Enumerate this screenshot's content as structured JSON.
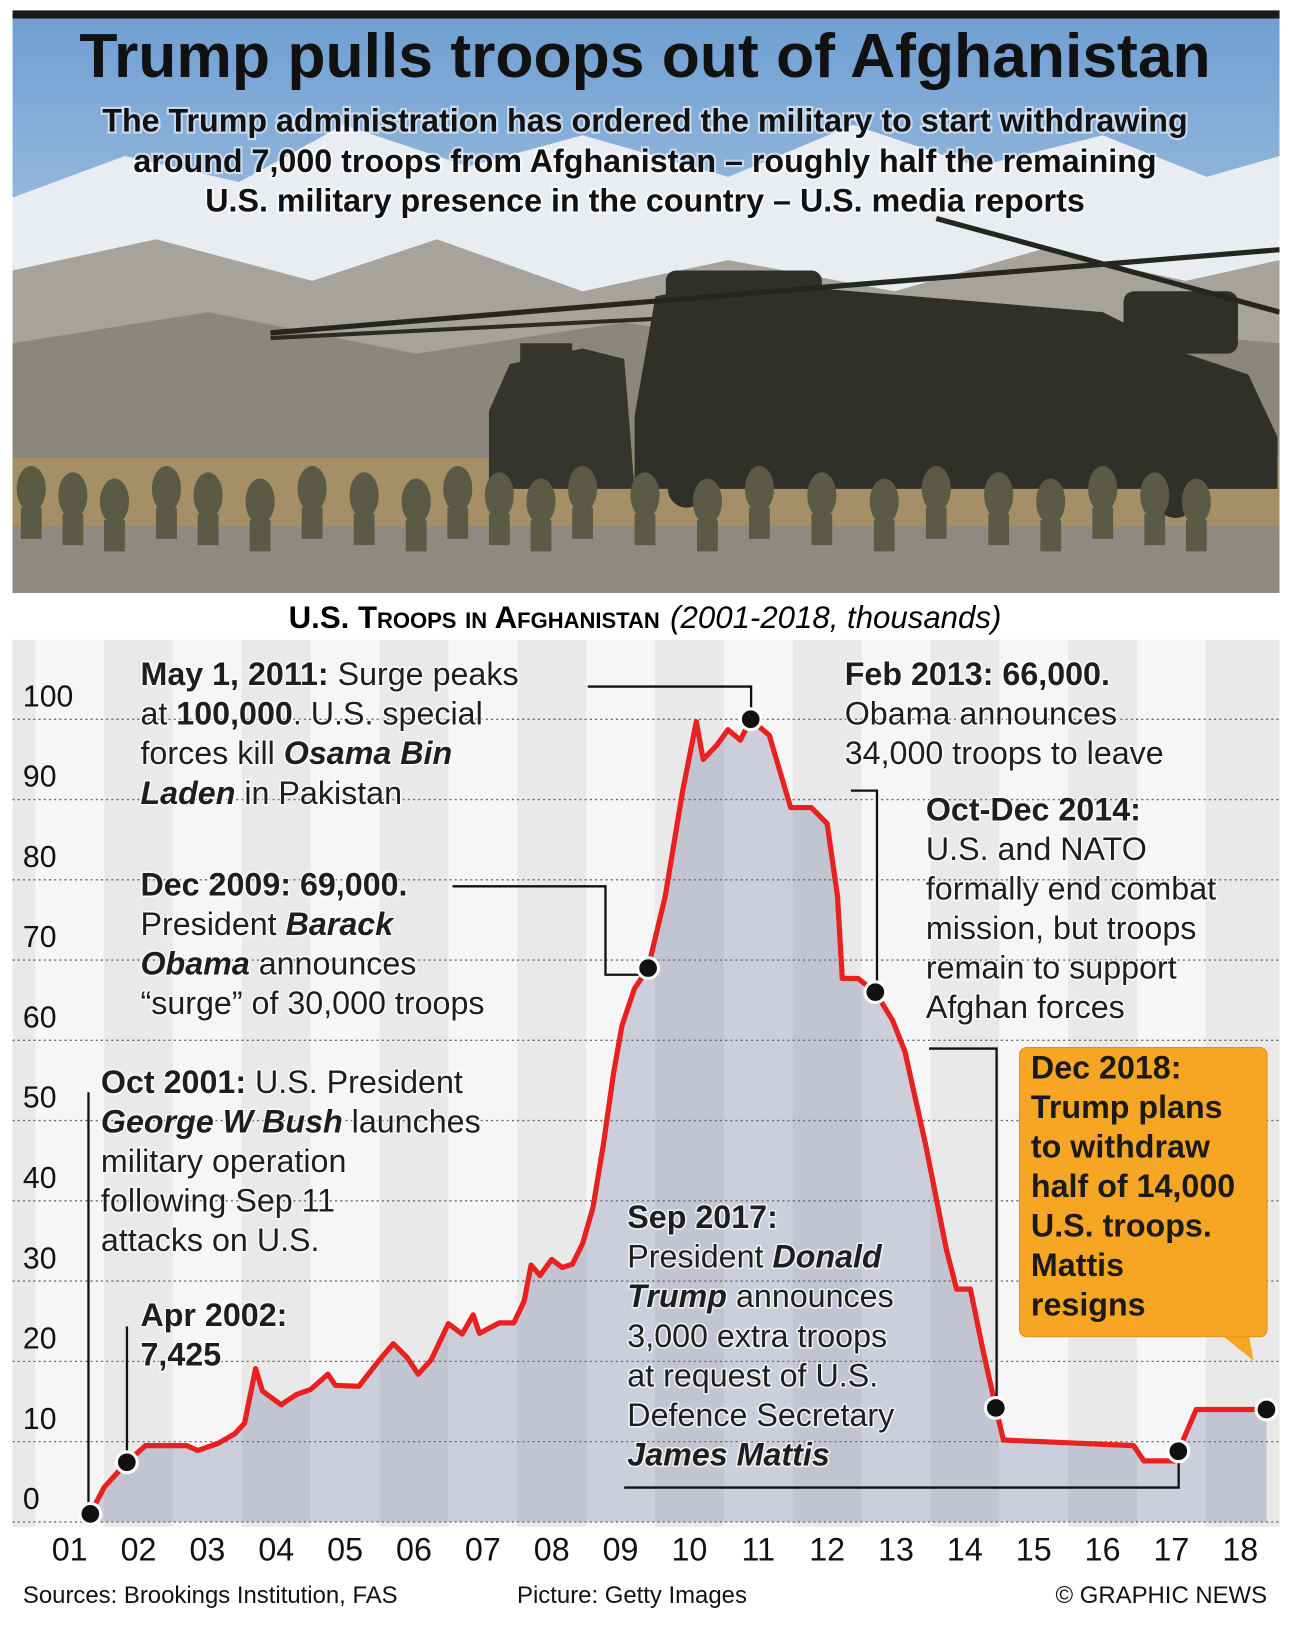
{
  "chart_data": {
    "type": "line",
    "title": "Trump pulls troops out of Afghanistan",
    "subtitle": [
      "The Trump administration has ordered the military to start withdrawing",
      "around 7,000 troops from Afghanistan – roughly half the remaining",
      "U.S. military presence in the country – U.S. media reports"
    ],
    "chart_title": "U.S. Troops in Afghanistan",
    "chart_subtitle": "(2001-2018, thousands)",
    "x": [
      2001.8,
      2002.0,
      2002.33,
      2002.6,
      2003.2,
      2003.36,
      2003.66,
      2003.9,
      2004.04,
      2004.2,
      2004.3,
      2004.57,
      2004.8,
      2005.0,
      2005.25,
      2005.36,
      2005.7,
      2006.0,
      2006.2,
      2006.4,
      2006.56,
      2006.75,
      2007.0,
      2007.2,
      2007.36,
      2007.45,
      2007.74,
      2007.95,
      2008.1,
      2008.2,
      2008.33,
      2008.5,
      2008.65,
      2008.8,
      2008.95,
      2009.1,
      2009.25,
      2009.4,
      2009.52,
      2009.7,
      2009.9,
      2010.15,
      2010.4,
      2010.6,
      2010.7,
      2010.9,
      2011.06,
      2011.24,
      2011.39,
      2011.66,
      2011.97,
      2012.27,
      2012.5,
      2012.65,
      2012.72,
      2012.95,
      2013.2,
      2013.45,
      2013.63,
      2013.93,
      2014.23,
      2014.38,
      2014.58,
      2014.76,
      2014.95,
      2015.06,
      2016.95,
      2017.1,
      2017.55,
      2017.6,
      2017.86,
      2018.88
    ],
    "values": [
      1,
      4.3,
      7.425,
      9.5,
      9.5,
      8.9,
      9.8,
      11,
      12.3,
      19.1,
      16.3,
      14.6,
      15.9,
      16.5,
      18.4,
      17,
      16.9,
      20.2,
      22.2,
      20.5,
      18.4,
      20.2,
      24.7,
      23.4,
      25.8,
      23.5,
      24.8,
      24.8,
      27.5,
      32,
      30.7,
      32.7,
      31.7,
      32.1,
      34.7,
      39.2,
      47,
      56,
      61.8,
      66.4,
      69,
      78,
      91,
      99.7,
      95,
      96.8,
      98.7,
      97.4,
      100,
      98,
      89,
      89,
      87,
      78,
      67.7,
      67.7,
      66,
      62.5,
      58.6,
      47,
      34,
      29,
      29,
      21.5,
      14.2,
      10.2,
      9.5,
      7.6,
      7.6,
      8.8,
      14,
      14
    ],
    "color": "#e8201e",
    "markers": [
      0,
      2,
      40,
      48,
      56,
      64,
      69,
      71
    ],
    "xlim": [
      2000.67,
      2019.07
    ],
    "xticks": [
      {
        "value": 2001.5,
        "label": "01"
      },
      {
        "value": 2002.5,
        "label": "02"
      },
      {
        "value": 2003.5,
        "label": "03"
      },
      {
        "value": 2004.5,
        "label": "04"
      },
      {
        "value": 2005.5,
        "label": "05"
      },
      {
        "value": 2006.5,
        "label": "06"
      },
      {
        "value": 2007.5,
        "label": "07"
      },
      {
        "value": 2008.5,
        "label": "08"
      },
      {
        "value": 2009.5,
        "label": "09"
      },
      {
        "value": 2010.5,
        "label": "10"
      },
      {
        "value": 2011.5,
        "label": "11"
      },
      {
        "value": 2012.5,
        "label": "12"
      },
      {
        "value": 2013.5,
        "label": "13"
      },
      {
        "value": 2014.5,
        "label": "14"
      },
      {
        "value": 2015.5,
        "label": "15"
      },
      {
        "value": 2016.5,
        "label": "16"
      },
      {
        "value": 2017.5,
        "label": "17"
      },
      {
        "value": 2018.5,
        "label": "18"
      }
    ],
    "ylim": [
      0,
      109
    ],
    "yticks": [
      0,
      10,
      20,
      30,
      40,
      50,
      60,
      70,
      80,
      90,
      100
    ],
    "grid": true,
    "annotations": [
      {
        "lines": [
          [
            {
              "text": "May 1, 2011:",
              "bold": true
            },
            {
              "text": " Surge peaks"
            }
          ],
          [
            {
              "text": "at "
            },
            {
              "text": "100,000",
              "bold": true
            },
            {
              "text": ". U.S. special"
            }
          ],
          [
            {
              "text": "forces kill "
            },
            {
              "text": "Osama Bin",
              "bold": true,
              "italic": true
            }
          ],
          [
            {
              "text": "Laden",
              "bold": true,
              "italic": true
            },
            {
              "text": " in Pakistan"
            }
          ]
        ]
      },
      {
        "lines": [
          [
            {
              "text": "Dec 2009: 69,000.",
              "bold": true
            }
          ],
          [
            {
              "text": "President "
            },
            {
              "text": "Barack",
              "bold": true,
              "italic": true
            }
          ],
          [
            {
              "text": "Obama",
              "bold": true,
              "italic": true
            },
            {
              "text": " announces"
            }
          ],
          [
            {
              "text": "“surge” of 30,000 troops"
            }
          ]
        ]
      },
      {
        "lines": [
          [
            {
              "text": "Oct 2001:",
              "bold": true
            },
            {
              "text": " U.S. President"
            }
          ],
          [
            {
              "text": "George W Bush",
              "bold": true,
              "italic": true
            },
            {
              "text": " launches"
            }
          ],
          [
            {
              "text": "military operation"
            }
          ],
          [
            {
              "text": "following Sep 11"
            }
          ],
          [
            {
              "text": "attacks on U.S."
            }
          ]
        ]
      },
      {
        "lines": [
          [
            {
              "text": "Apr 2002:",
              "bold": true
            }
          ],
          [
            {
              "text": "7,425",
              "bold": true
            }
          ]
        ]
      },
      {
        "lines": [
          [
            {
              "text": "Feb 2013: 66,000.",
              "bold": true
            }
          ],
          [
            {
              "text": "Obama announces"
            }
          ],
          [
            {
              "text": "34,000 troops to leave"
            }
          ]
        ]
      },
      {
        "lines": [
          [
            {
              "text": "Oct-Dec 2014:",
              "bold": true
            }
          ],
          [
            {
              "text": "U.S. and NATO"
            }
          ],
          [
            {
              "text": "formally end combat"
            }
          ],
          [
            {
              "text": "mission, but troops"
            }
          ],
          [
            {
              "text": "remain to support"
            }
          ],
          [
            {
              "text": "Afghan forces"
            }
          ]
        ]
      },
      {
        "lines": [
          [
            {
              "text": "Sep 2017:",
              "bold": true
            }
          ],
          [
            {
              "text": "President "
            },
            {
              "text": "Donald",
              "bold": true,
              "italic": true
            }
          ],
          [
            {
              "text": "Trump",
              "bold": true,
              "italic": true
            },
            {
              "text": " announces"
            }
          ],
          [
            {
              "text": "3,000 extra troops"
            }
          ],
          [
            {
              "text": "at request of U.S."
            }
          ],
          [
            {
              "text": "Defence Secretary"
            }
          ],
          [
            {
              "text": "James Mattis",
              "bold": true,
              "italic": true
            }
          ]
        ]
      },
      {
        "background": "#f6a623",
        "lines": [
          [
            {
              "text": "Dec 2018:",
              "bold": true
            }
          ],
          [
            {
              "text": "Trump plans",
              "bold": true
            }
          ],
          [
            {
              "text": "to withdraw",
              "bold": true
            }
          ],
          [
            {
              "text": "half of 14,000",
              "bold": true
            }
          ],
          [
            {
              "text": "U.S. troops.",
              "bold": true
            }
          ],
          [
            {
              "text": "Mattis",
              "bold": true
            }
          ],
          [
            {
              "text": "resigns",
              "bold": true
            }
          ]
        ]
      }
    ],
    "sources": "Sources: Brookings Institution, FAS",
    "picture_credit": "Picture: Getty Images",
    "copyright": "© GRAPHIC NEWS"
  }
}
